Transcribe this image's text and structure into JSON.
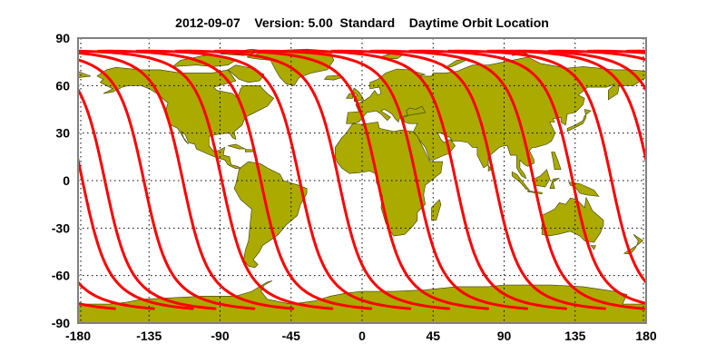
{
  "title": {
    "date": "2012-09-07",
    "version": "Version: 5.00",
    "mode": "Standard",
    "product": "Daytime Orbit Location"
  },
  "map": {
    "projection": "equirectangular",
    "x_ticks": [
      "-180",
      "-135",
      "-90",
      "-45",
      "0",
      "45",
      "90",
      "135",
      "180"
    ],
    "y_ticks": [
      "90",
      "60",
      "30",
      "0",
      "-30",
      "-60",
      "-90"
    ],
    "xlim": [
      -180,
      180
    ],
    "ylim": [
      -90,
      90
    ],
    "grid": true,
    "orbit_equator_crossings_lon": [
      -163,
      -138.3,
      -113.6,
      -88.9,
      -64.2,
      -39.5,
      -14.8,
      9.9,
      34.6,
      59.3,
      84,
      108.7,
      133.4,
      158.1,
      182.8
    ],
    "colors": {
      "land": "#aaaa00",
      "orbit": "#ff0000",
      "frame": "#808080",
      "grid": "#000000"
    }
  }
}
